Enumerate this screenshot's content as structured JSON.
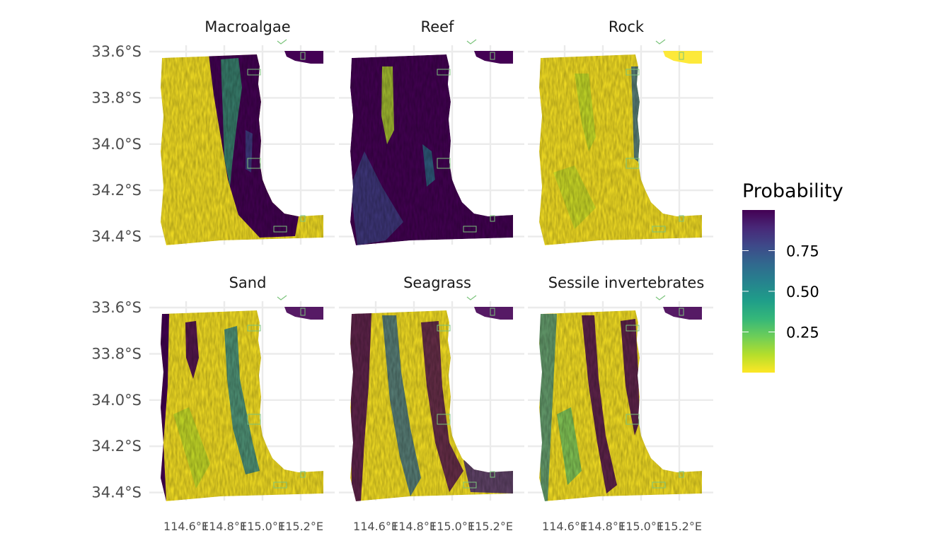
{
  "panels": [
    {
      "title": "Macroalgae",
      "habitat": "macroalgae"
    },
    {
      "title": "Reef",
      "habitat": "reef"
    },
    {
      "title": "Rock",
      "habitat": "rock"
    },
    {
      "title": "Sand",
      "habitat": "sand"
    },
    {
      "title": "Seagrass",
      "habitat": "seagrass"
    },
    {
      "title": "Sessile invertebrates",
      "habitat": "sessile-invertebrates"
    }
  ],
  "y_axis": {
    "ticks": [
      {
        "label": "33.6°S",
        "value": -33.6
      },
      {
        "label": "33.8°S",
        "value": -33.8
      },
      {
        "label": "34.0°S",
        "value": -34.0
      },
      {
        "label": "34.2°S",
        "value": -34.2
      },
      {
        "label": "34.4°S",
        "value": -34.4
      }
    ]
  },
  "x_axis": {
    "ticks": [
      {
        "label": "114.6°E",
        "value": 114.6
      },
      {
        "label": "114.8°E",
        "value": 114.8
      },
      {
        "label": "115.0°E",
        "value": 115.0
      },
      {
        "label": "115.2°E",
        "value": 115.2
      }
    ]
  },
  "legend": {
    "title": "Probability",
    "ticks": [
      {
        "label": "0.75",
        "value": 0.75
      },
      {
        "label": "0.50",
        "value": 0.5
      },
      {
        "label": "0.25",
        "value": 0.25
      }
    ],
    "range": [
      0,
      1
    ],
    "palette": [
      "#fde725",
      "#b5de2b",
      "#6ece58",
      "#35b779",
      "#1f9e89",
      "#26828e",
      "#31688e",
      "#3e4989",
      "#482878",
      "#440154"
    ]
  },
  "colors": {
    "low_probability": "#fde725",
    "high_probability": "#440154",
    "outline": "#7cc47c",
    "grid": "#ebebeb"
  }
}
